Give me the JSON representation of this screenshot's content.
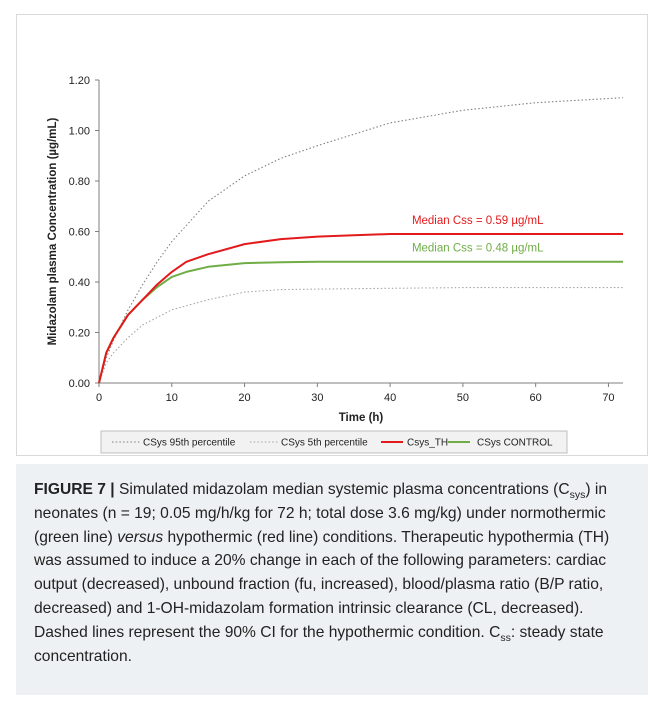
{
  "chart_data": {
    "type": "line",
    "xlabel": "Time (h)",
    "ylabel": "Midazolam plasma Concentration (µg/mL)",
    "xlim": [
      0,
      72
    ],
    "ylim": [
      0,
      1.2
    ],
    "xticks": [
      0,
      10,
      20,
      30,
      40,
      50,
      60,
      70
    ],
    "xtick_labels": [
      "0",
      "10",
      "20",
      "30",
      "40",
      "50",
      "60",
      "70"
    ],
    "yticks": [
      0,
      0.2,
      0.4,
      0.6,
      0.8,
      1.0,
      1.2
    ],
    "ytick_labels": [
      "0.00",
      "0.20",
      "0.40",
      "0.60",
      "0.80",
      "1.00",
      "1.20"
    ],
    "grid": false,
    "legend_position": "bottom",
    "series": [
      {
        "name": "CSys 95th percentile",
        "color": "#7f7f7f",
        "style": "dotted",
        "x": [
          0,
          1,
          2,
          4,
          6,
          8,
          10,
          15,
          20,
          25,
          30,
          40,
          50,
          60,
          72
        ],
        "y": [
          0,
          0.1,
          0.17,
          0.29,
          0.39,
          0.48,
          0.56,
          0.72,
          0.82,
          0.89,
          0.94,
          1.03,
          1.08,
          1.11,
          1.13
        ]
      },
      {
        "name": "CSys 5th percentile",
        "color": "#a6a6a6",
        "style": "dotted",
        "x": [
          0,
          1,
          2,
          4,
          6,
          8,
          10,
          15,
          20,
          25,
          30,
          40,
          50,
          60,
          72
        ],
        "y": [
          0,
          0.08,
          0.12,
          0.18,
          0.23,
          0.26,
          0.29,
          0.33,
          0.36,
          0.37,
          0.372,
          0.375,
          0.378,
          0.378,
          0.378
        ]
      },
      {
        "name": "Csys_TH",
        "color": "#e31a1c",
        "style": "solid",
        "x": [
          0,
          1,
          2,
          4,
          6,
          8,
          10,
          12,
          15,
          20,
          25,
          30,
          35,
          40,
          50,
          60,
          72
        ],
        "y": [
          0,
          0.12,
          0.18,
          0.27,
          0.33,
          0.39,
          0.44,
          0.48,
          0.51,
          0.55,
          0.57,
          0.58,
          0.585,
          0.59,
          0.59,
          0.59,
          0.59
        ]
      },
      {
        "name": "CSys CONTROL",
        "color": "#70ad47",
        "style": "solid",
        "x": [
          0,
          1,
          2,
          4,
          6,
          8,
          10,
          12,
          15,
          20,
          25,
          30,
          40,
          50,
          60,
          72
        ],
        "y": [
          0,
          0.12,
          0.18,
          0.27,
          0.33,
          0.38,
          0.42,
          0.44,
          0.46,
          0.475,
          0.478,
          0.48,
          0.48,
          0.48,
          0.48,
          0.48
        ]
      }
    ],
    "annotations": [
      {
        "text": "Median Css = 0.59 µg/mL",
        "color": "#e31a1c",
        "x": 43,
        "y": 0.63
      },
      {
        "text": "Median Css = 0.48 µg/mL",
        "color": "#70ad47",
        "x": 43,
        "y": 0.52
      }
    ]
  },
  "caption": {
    "label": "FIGURE 7 |",
    "text_1": " Simulated midazolam median systemic plasma concentrations (C",
    "sub_1": "sys",
    "text_2": ") in neonates (n = 19; 0.05 mg/h/kg for 72 h; total dose 3.6 mg/kg) under normothermic (green line) ",
    "em_1": "versus",
    "text_3": " hypothermic (red line) conditions. Therapeutic hypothermia (TH) was assumed to induce a 20% change in each of the following parameters: cardiac output (decreased), unbound fraction (fu, increased), blood/plasma ratio (B/P ratio, decreased) and 1-OH-midazolam formation intrinsic clearance (CL, decreased). Dashed lines represent the 90% CI for the hypothermic condition. C",
    "sub_2": "ss",
    "text_4": ": steady state concentration."
  }
}
